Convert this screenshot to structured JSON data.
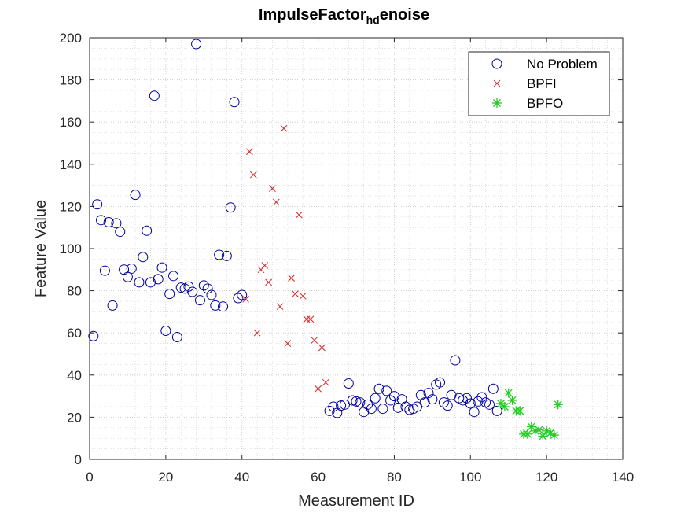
{
  "chart_data": {
    "type": "scatter",
    "title_main": "ImpulseFactor",
    "title_sub": "hd",
    "title_end": "enoise",
    "xlabel": "Measurement ID",
    "ylabel": "Feature Value",
    "xlim": [
      0,
      140
    ],
    "ylim": [
      0,
      200
    ],
    "xticks": [
      "0",
      "20",
      "40",
      "60",
      "80",
      "100",
      "120",
      "140"
    ],
    "yticks": [
      "0",
      "20",
      "40",
      "60",
      "80",
      "100",
      "120",
      "140",
      "160",
      "180",
      "200"
    ],
    "grid": true,
    "minor_grid": true,
    "legend_position": "top-right",
    "series": [
      {
        "name": "No Problem",
        "marker": "circle",
        "color": "#0000a0",
        "points": [
          [
            1,
            58.5
          ],
          [
            2,
            121
          ],
          [
            3,
            113.5
          ],
          [
            4,
            89.5
          ],
          [
            5,
            112.5
          ],
          [
            6,
            73
          ],
          [
            7,
            112
          ],
          [
            8,
            108
          ],
          [
            9,
            90
          ],
          [
            10,
            86.5
          ],
          [
            11,
            90.5
          ],
          [
            12,
            125.5
          ],
          [
            13,
            84
          ],
          [
            14,
            96
          ],
          [
            15,
            108.5
          ],
          [
            16,
            84
          ],
          [
            17,
            172.5
          ],
          [
            18,
            85.5
          ],
          [
            19,
            91
          ],
          [
            20,
            61
          ],
          [
            21,
            78.5
          ],
          [
            22,
            87
          ],
          [
            23,
            58
          ],
          [
            24,
            81.5
          ],
          [
            25,
            81
          ],
          [
            26,
            82
          ],
          [
            27,
            79.5
          ],
          [
            28,
            197
          ],
          [
            29,
            75.5
          ],
          [
            30,
            82.5
          ],
          [
            31,
            81
          ],
          [
            32,
            78
          ],
          [
            33,
            73
          ],
          [
            34,
            97
          ],
          [
            35,
            72.5
          ],
          [
            36,
            96.5
          ],
          [
            37,
            119.5
          ],
          [
            38,
            169.5
          ],
          [
            39,
            76.5
          ],
          [
            40,
            78
          ],
          [
            63,
            23
          ],
          [
            64,
            25
          ],
          [
            65,
            22
          ],
          [
            66,
            25.5
          ],
          [
            67,
            26
          ],
          [
            68,
            36
          ],
          [
            69,
            28
          ],
          [
            70,
            27.5
          ],
          [
            71,
            27
          ],
          [
            72,
            22.5
          ],
          [
            73,
            26
          ],
          [
            74,
            24
          ],
          [
            75,
            29
          ],
          [
            76,
            33.5
          ],
          [
            77,
            24
          ],
          [
            78,
            32.5
          ],
          [
            79,
            28
          ],
          [
            80,
            30
          ],
          [
            81,
            24.5
          ],
          [
            82,
            28.5
          ],
          [
            83,
            25
          ],
          [
            84,
            23.5
          ],
          [
            85,
            24
          ],
          [
            86,
            25
          ],
          [
            87,
            30.5
          ],
          [
            88,
            27
          ],
          [
            89,
            31.5
          ],
          [
            90,
            28.5
          ],
          [
            91,
            35.5
          ],
          [
            92,
            36.5
          ],
          [
            93,
            27
          ],
          [
            94,
            25.5
          ],
          [
            95,
            30.5
          ],
          [
            96,
            47
          ],
          [
            97,
            29
          ],
          [
            98,
            28
          ],
          [
            99,
            29
          ],
          [
            100,
            26.5
          ],
          [
            101,
            22.5
          ],
          [
            102,
            27.5
          ],
          [
            103,
            29.5
          ],
          [
            104,
            27
          ],
          [
            105,
            26
          ],
          [
            106,
            33.5
          ],
          [
            107,
            23
          ]
        ]
      },
      {
        "name": "BPFI",
        "marker": "x",
        "color": "#d62728",
        "points": [
          [
            41,
            76
          ],
          [
            42,
            146
          ],
          [
            43,
            135
          ],
          [
            44,
            60
          ],
          [
            45,
            90
          ],
          [
            46,
            92
          ],
          [
            47,
            84
          ],
          [
            48,
            128.5
          ],
          [
            49,
            122
          ],
          [
            50,
            72.5
          ],
          [
            51,
            157
          ],
          [
            52,
            55
          ],
          [
            53,
            86
          ],
          [
            54,
            78.5
          ],
          [
            55,
            116
          ],
          [
            56,
            77.5
          ],
          [
            57,
            66.5
          ],
          [
            58,
            66.5
          ],
          [
            59,
            56.5
          ],
          [
            60,
            33.5
          ],
          [
            61,
            53
          ],
          [
            62,
            36.5
          ]
        ]
      },
      {
        "name": "BPFO",
        "marker": "star",
        "color": "#22cc22",
        "points": [
          [
            108,
            26.5
          ],
          [
            109,
            25
          ],
          [
            110,
            31.5
          ],
          [
            111,
            28
          ],
          [
            112,
            23
          ],
          [
            113,
            23
          ],
          [
            114,
            12
          ],
          [
            115,
            12
          ],
          [
            116,
            15.5
          ],
          [
            117,
            13.5
          ],
          [
            118,
            14
          ],
          [
            119,
            11
          ],
          [
            120,
            13.5
          ],
          [
            121,
            12.5
          ],
          [
            122,
            11.5
          ],
          [
            123,
            26
          ]
        ]
      }
    ]
  }
}
